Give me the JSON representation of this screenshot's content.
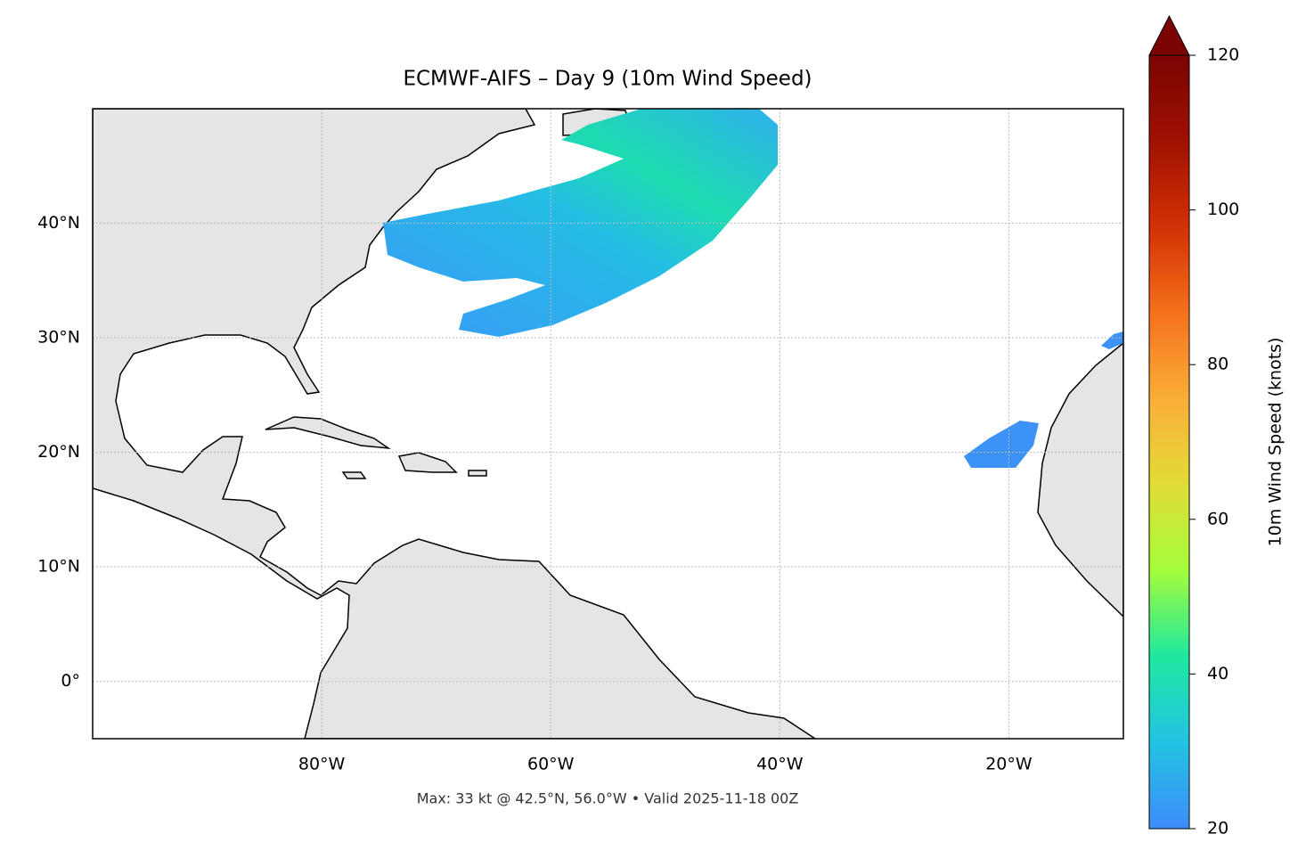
{
  "title": "ECMWF-AIFS – Day 9 (10m Wind Speed)",
  "footer": "Max: 33 kt @ 42.5°N, 56.0°W • Valid 2025-11-18 00Z",
  "map": {
    "xlim": [
      -100,
      -10
    ],
    "ylim": [
      -5,
      50
    ],
    "grid": true,
    "xticks": [
      {
        "value": -80,
        "label": "80°W"
      },
      {
        "value": -60,
        "label": "60°W"
      },
      {
        "value": -40,
        "label": "40°W"
      },
      {
        "value": -20,
        "label": "20°W"
      }
    ],
    "yticks": [
      {
        "value": 0,
        "label": "0°"
      },
      {
        "value": 10,
        "label": "10°N"
      },
      {
        "value": 20,
        "label": "20°N"
      },
      {
        "value": 30,
        "label": "30°N"
      },
      {
        "value": 40,
        "label": "40°N"
      }
    ]
  },
  "colorbar": {
    "label": "10m Wind Speed (knots)",
    "lim": [
      20,
      120
    ],
    "ticks": [
      20,
      40,
      60,
      80,
      100,
      120
    ],
    "colors": [
      "#3e8cf9",
      "#23c3e3",
      "#1ee8a0",
      "#a4fc3c",
      "#e1dd37",
      "#fbae39",
      "#f5711c",
      "#d23105",
      "#a01101",
      "#7a0403"
    ]
  }
}
